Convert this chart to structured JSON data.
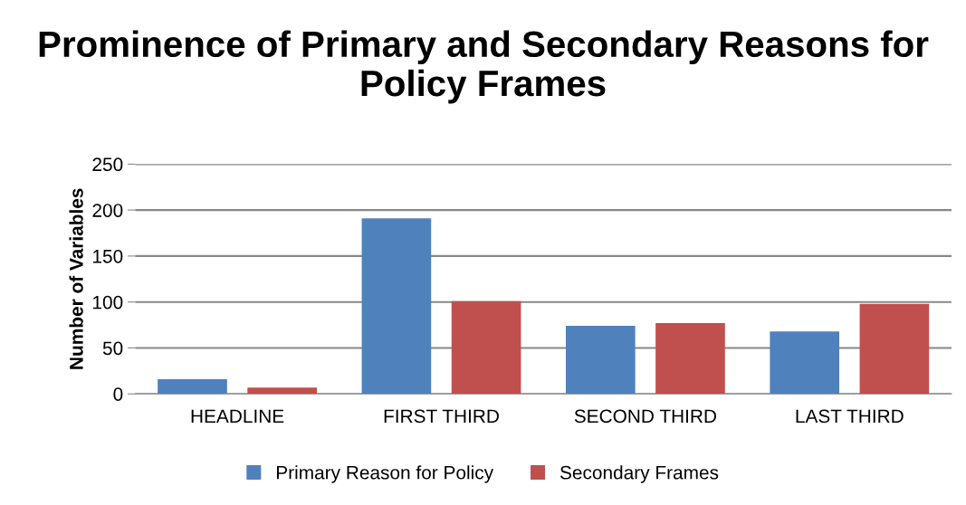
{
  "chart_data": {
    "type": "bar",
    "title": "Prominence of Primary and Secondary Reasons for Policy Frames",
    "ylabel": "Number of Variables",
    "categories": [
      "HEADLINE",
      "FIRST THIRD",
      "SECOND THIRD",
      "LAST THIRD"
    ],
    "series": [
      {
        "name": "Primary Reason for Policy",
        "color": "#4f81bd",
        "values": [
          16,
          191,
          74,
          68
        ]
      },
      {
        "name": "Secondary Frames",
        "color": "#c0504d",
        "values": [
          7,
          101,
          77,
          98
        ]
      }
    ],
    "ylim": [
      0,
      250
    ],
    "yticks": [
      0,
      50,
      100,
      150,
      200,
      250
    ],
    "grid": "y",
    "legend": "bottom"
  }
}
